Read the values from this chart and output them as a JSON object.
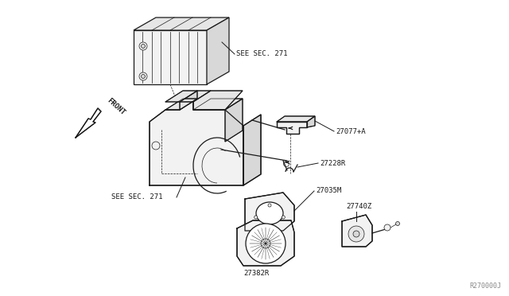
{
  "bg_color": "#ffffff",
  "line_color": "#1a1a1a",
  "text_color": "#1a1a1a",
  "gray_fill": "#f2f2f2",
  "mid_fill": "#e6e6e6",
  "dark_fill": "#d8d8d8",
  "fig_width": 6.4,
  "fig_height": 3.72,
  "dpi": 100,
  "watermark": "R270000J",
  "labels": {
    "see_sec_271_top": "SEE SEC. 271",
    "see_sec_271_bot": "SEE SEC. 271",
    "front": "FRONT",
    "p27077": "27077+A",
    "p27228": "27228R",
    "p27035": "27035M",
    "p27740": "27740Z",
    "p27382": "27382R"
  }
}
